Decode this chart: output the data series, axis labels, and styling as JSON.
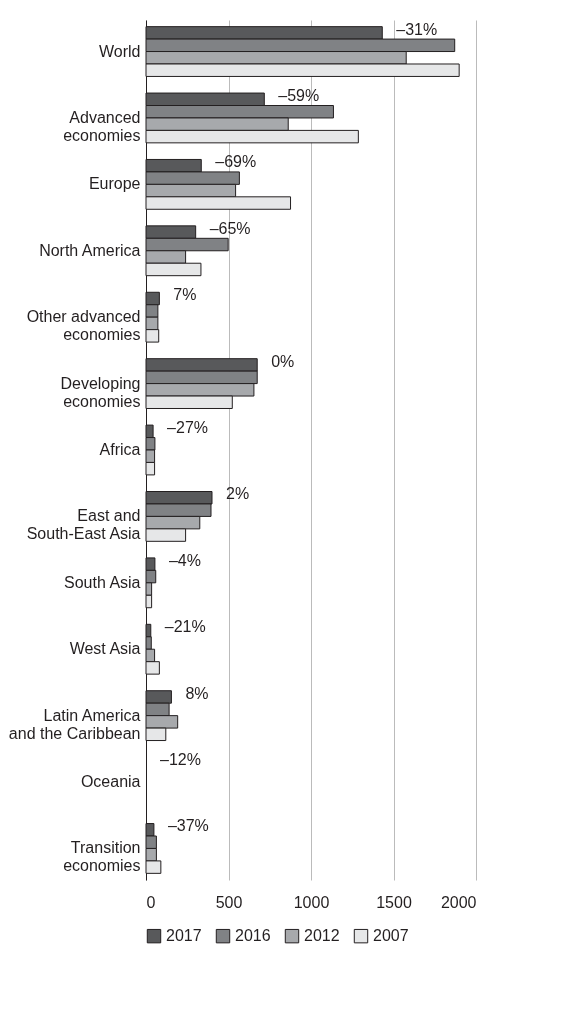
{
  "chart_data": {
    "type": "bar",
    "orientation": "horizontal",
    "categories": [
      "World",
      "Advanced economies",
      "Europe",
      "North America",
      "Other advanced economies",
      "Developing economies",
      "Africa",
      "East and South-East Asia",
      "South Asia",
      "West Asia",
      "Latin America and the Caribbean",
      "Oceania",
      "Transition economies"
    ],
    "series": [
      {
        "name": "2017",
        "color": "#58595b",
        "values": [
          1432,
          717,
          335,
          301,
          81,
          674,
          43,
          400,
          54,
          29,
          154,
          null,
          48
        ]
      },
      {
        "name": "2016",
        "color": "#808285",
        "values": [
          1871,
          1136,
          566,
          498,
          72,
          674,
          54,
          394,
          59,
          32,
          140,
          null,
          63
        ]
      },
      {
        "name": "2012",
        "color": "#a7a9ac",
        "values": [
          1577,
          862,
          543,
          240,
          72,
          654,
          52,
          326,
          34,
          52,
          192,
          null,
          63
        ]
      },
      {
        "name": "2007",
        "color": "#e6e7e8",
        "values": [
          1898,
          1287,
          876,
          333,
          77,
          523,
          52,
          240,
          34,
          81,
          120,
          null,
          90
        ]
      }
    ],
    "xlim": [
      0,
      2000
    ],
    "xticks": [
      0,
      500,
      1000,
      1500,
      2000
    ],
    "grid": "x",
    "legend": "bottom",
    "annotations": [
      {
        "text": "–31%",
        "x": 1432,
        "y": "World"
      },
      {
        "text": "–59%",
        "x": 717,
        "y": "Advanced economies"
      },
      {
        "text": "–69%",
        "x": 335,
        "y": "Europe"
      },
      {
        "text": "–65%",
        "x": 301,
        "y": "North America"
      },
      {
        "text": "7%",
        "x": 81,
        "y": "Other advanced economies"
      },
      {
        "text": "0%",
        "x": 674,
        "y": "Developing economies"
      },
      {
        "text": "–27%",
        "x": 43,
        "y": "Africa"
      },
      {
        "text": "2%",
        "x": 400,
        "y": "East and South-East Asia"
      },
      {
        "text": "–4%",
        "x": 54,
        "y": "South Asia"
      },
      {
        "text": "–21%",
        "x": 29,
        "y": "West Asia"
      },
      {
        "text": "8%",
        "x": 154,
        "y": "Latin America and the Caribbean"
      },
      "–12%",
      {
        "text": "–37%",
        "x": 48,
        "y": "Transition economies"
      }
    ]
  }
}
